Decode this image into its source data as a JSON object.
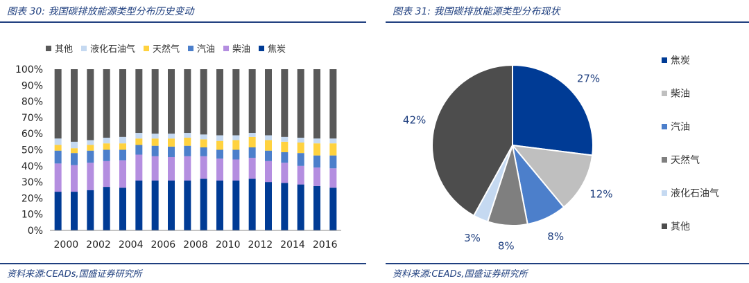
{
  "left": {
    "title": "图表 30:  我国碳排放能源类型分布历史变动",
    "source": "资料来源:CEADs,国盛证券研究所"
  },
  "right": {
    "title": "图表 31:  我国碳排放能源类型分布现状",
    "source": "资料来源:CEADs,国盛证券研究所"
  },
  "chart_data": [
    {
      "type": "bar",
      "stacked": true,
      "categories": [
        "2000",
        "2001",
        "2002",
        "2003",
        "2004",
        "2005",
        "2006",
        "2007",
        "2008",
        "2009",
        "2010",
        "2011",
        "2012",
        "2013",
        "2014",
        "2015",
        "2016",
        "2017"
      ],
      "x_tick_labels": [
        "2000",
        "2002",
        "2004",
        "2006",
        "2008",
        "2010",
        "2012",
        "2014",
        "2016"
      ],
      "y_tick_labels": [
        "0%",
        "10%",
        "20%",
        "30%",
        "40%",
        "50%",
        "60%",
        "70%",
        "80%",
        "90%",
        "100%"
      ],
      "ylim": [
        0,
        100
      ],
      "grid": false,
      "legend_position": "top",
      "series": [
        {
          "name": "焦炭",
          "color": "#003b95",
          "values": [
            24,
            24,
            25,
            27,
            26.5,
            31,
            31,
            31,
            31,
            32,
            31,
            31,
            32,
            30,
            29.5,
            28.5,
            27.5,
            26.5
          ]
        },
        {
          "name": "柴油",
          "color": "#b48ee0",
          "values": [
            17.5,
            16.5,
            17,
            16,
            17,
            16,
            15,
            14.5,
            15,
            14,
            13.5,
            13,
            13,
            13,
            12.5,
            11.5,
            11.5,
            12
          ]
        },
        {
          "name": "汽油",
          "color": "#4c7fcb",
          "values": [
            8,
            7.5,
            7.5,
            7,
            6.5,
            6,
            6.5,
            6.5,
            6.5,
            5.5,
            5.5,
            6,
            6.5,
            6.5,
            6.5,
            8,
            7.5,
            8
          ]
        },
        {
          "name": "天然气",
          "color": "#ffd23f",
          "values": [
            3.5,
            3,
            3.5,
            4,
            4,
            4,
            4.5,
            5,
            5,
            5,
            5.5,
            6,
            6.5,
            6.5,
            6.5,
            6.5,
            7.5,
            7.5
          ]
        },
        {
          "name": "液化石油气",
          "color": "#c5d9f1",
          "values": [
            4,
            4,
            3,
            3.5,
            4,
            3.5,
            3,
            3,
            3,
            3,
            3.5,
            3,
            2.5,
            3,
            3,
            3,
            3,
            3
          ]
        },
        {
          "name": "其他",
          "color": "#595959",
          "values": [
            43,
            45,
            44,
            42.5,
            42,
            39.5,
            40,
            40,
            39.5,
            40.5,
            41,
            41,
            39.5,
            41,
            42,
            42.5,
            43,
            43
          ]
        }
      ]
    },
    {
      "type": "pie",
      "slices": [
        {
          "name": "焦炭",
          "value": 27,
          "label": "27%",
          "color": "#003b95"
        },
        {
          "name": "柴油",
          "value": 12,
          "label": "12%",
          "color": "#bfbfbf"
        },
        {
          "name": "汽油",
          "value": 8,
          "label": "8%",
          "color": "#4c7fcb"
        },
        {
          "name": "天然气",
          "value": 8,
          "label": "8%",
          "color": "#7f7f7f"
        },
        {
          "name": "液化石油气",
          "value": 3,
          "label": "3%",
          "color": "#c5d9f1"
        },
        {
          "name": "其他",
          "value": 42,
          "label": "42%",
          "color": "#4d4d4d"
        }
      ],
      "legend_position": "right"
    }
  ]
}
